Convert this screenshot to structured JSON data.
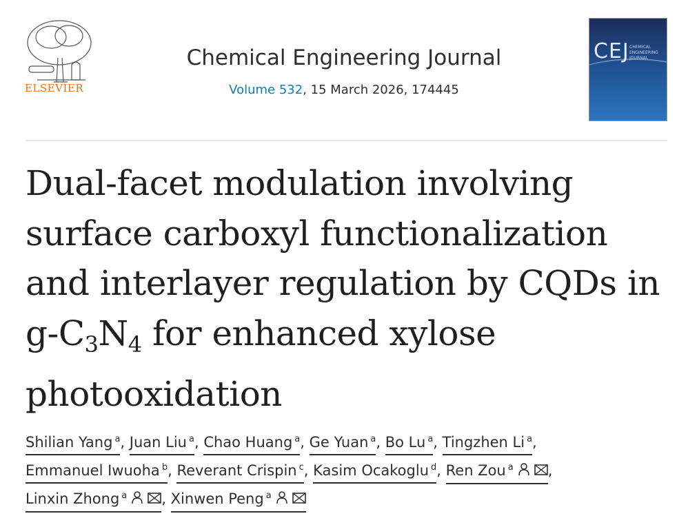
{
  "publisher": {
    "name": "ELSEVIER",
    "logo_icon": "elsevier-tree-logo"
  },
  "journal": {
    "title": "Chemical Engineering Journal",
    "volume_link": "Volume 532",
    "details": ", 15 March 2026, 174445",
    "cover": {
      "abbrev": "CEJ",
      "subtitle_lines": [
        "CHEMICAL",
        "ENGINEERING",
        "JOURNAL"
      ]
    }
  },
  "article": {
    "title_lines": [
      "Dual-facet modulation involving",
      "surface carboxyl functionalization",
      "and interlayer regulation by CQDs in"
    ],
    "title_line4": {
      "a": "g-C",
      "b": "3",
      "c": "N",
      "d": "4",
      "e": " for enhanced xylose"
    },
    "title_line5": "photooxidation"
  },
  "authors": [
    {
      "name": "Shilian Yang",
      "aff": "a"
    },
    {
      "name": "Juan Liu",
      "aff": "a"
    },
    {
      "name": "Chao Huang",
      "aff": "a"
    },
    {
      "name": "Ge Yuan",
      "aff": "a"
    },
    {
      "name": "Bo Lu",
      "aff": "a"
    },
    {
      "name": "Tingzhen Li",
      "aff": "a"
    },
    {
      "name": "Emmanuel Iwuoha",
      "aff": "b"
    },
    {
      "name": "Reverant Crispin",
      "aff": "c"
    },
    {
      "name": "Kasim Ocakoglu",
      "aff": "d"
    },
    {
      "name": "Ren Zou",
      "aff": "a",
      "icons": [
        "person-icon",
        "email-icon"
      ]
    },
    {
      "name": "Linxin Zhong",
      "aff": "a",
      "icons": [
        "person-icon",
        "email-icon"
      ]
    },
    {
      "name": "Xinwen Peng",
      "aff": "a",
      "icons": [
        "person-icon",
        "email-icon"
      ]
    }
  ],
  "separator": ", "
}
